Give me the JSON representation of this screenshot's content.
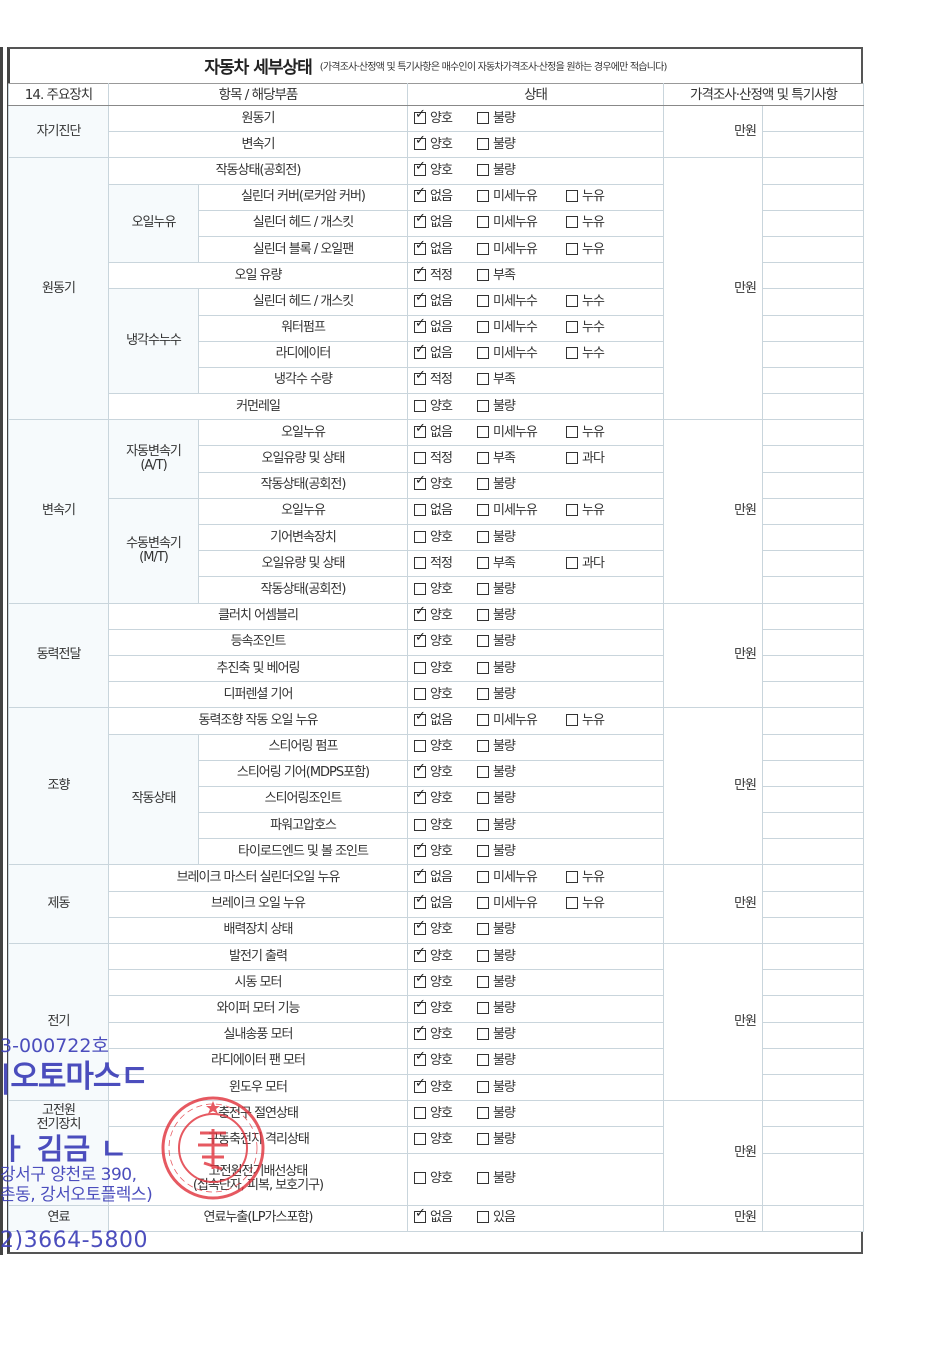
{
  "header": {
    "title": "자동차 세부상태",
    "subtitle": "(가격조사·산정액 및 특기사항은 매수인이 자동차가격조사·산정을 원하는 경우에만 적습니다)"
  },
  "columns": {
    "section": "14. 주요장치",
    "item": "항목 / 해당부품",
    "status": "상태",
    "price": "가격조사·산정액 및 특기사항"
  },
  "sections": [
    {
      "label": "자기진단",
      "price_unit": "만원",
      "rows": [
        {
          "item": "원동기",
          "options": [
            {
              "label": "양호",
              "checked": true
            },
            {
              "label": "불량",
              "checked": false
            }
          ]
        },
        {
          "item": "변속기",
          "options": [
            {
              "label": "양호",
              "checked": true
            },
            {
              "label": "불량",
              "checked": false
            }
          ]
        }
      ]
    },
    {
      "label": "원동기",
      "price_unit": "만원",
      "rows": [
        {
          "item": "작동상태(공회전)",
          "options": [
            {
              "label": "양호",
              "checked": true
            },
            {
              "label": "불량",
              "checked": false
            }
          ]
        },
        {
          "group": "오일누유",
          "item": "실린더 커버(로커암 커버)",
          "options": [
            {
              "label": "없음",
              "checked": true
            },
            {
              "label": "미세누유",
              "checked": false
            },
            {
              "label": "누유",
              "checked": false
            }
          ]
        },
        {
          "group": "오일누유",
          "item": "실린더 헤드 / 개스킷",
          "options": [
            {
              "label": "없음",
              "checked": true
            },
            {
              "label": "미세누유",
              "checked": false
            },
            {
              "label": "누유",
              "checked": false
            }
          ]
        },
        {
          "group": "오일누유",
          "item": "실린더 블록 / 오일팬",
          "options": [
            {
              "label": "없음",
              "checked": true
            },
            {
              "label": "미세누유",
              "checked": false
            },
            {
              "label": "누유",
              "checked": false
            }
          ]
        },
        {
          "item": "오일 유량",
          "options": [
            {
              "label": "적정",
              "checked": true
            },
            {
              "label": "부족",
              "checked": false
            }
          ]
        },
        {
          "group": "냉각수누수",
          "item": "실린더 헤드 / 개스킷",
          "options": [
            {
              "label": "없음",
              "checked": true
            },
            {
              "label": "미세누수",
              "checked": false
            },
            {
              "label": "누수",
              "checked": false
            }
          ]
        },
        {
          "group": "냉각수누수",
          "item": "워터펌프",
          "options": [
            {
              "label": "없음",
              "checked": true
            },
            {
              "label": "미세누수",
              "checked": false
            },
            {
              "label": "누수",
              "checked": false
            }
          ]
        },
        {
          "group": "냉각수누수",
          "item": "라디에이터",
          "options": [
            {
              "label": "없음",
              "checked": true
            },
            {
              "label": "미세누수",
              "checked": false
            },
            {
              "label": "누수",
              "checked": false
            }
          ]
        },
        {
          "group": "냉각수누수",
          "item": "냉각수 수량",
          "options": [
            {
              "label": "적정",
              "checked": true
            },
            {
              "label": "부족",
              "checked": false
            }
          ]
        },
        {
          "item": "커먼레일",
          "options": [
            {
              "label": "양호",
              "checked": false
            },
            {
              "label": "불량",
              "checked": false
            }
          ]
        }
      ]
    },
    {
      "label": "변속기",
      "price_unit": "만원",
      "rows": [
        {
          "group": "자동변속기\n(A/T)",
          "item": "오일누유",
          "options": [
            {
              "label": "없음",
              "checked": true
            },
            {
              "label": "미세누유",
              "checked": false
            },
            {
              "label": "누유",
              "checked": false
            }
          ]
        },
        {
          "group": "자동변속기\n(A/T)",
          "item": "오일유량 및 상태",
          "options": [
            {
              "label": "적정",
              "checked": false
            },
            {
              "label": "부족",
              "checked": false
            },
            {
              "label": "과다",
              "checked": false
            }
          ]
        },
        {
          "group": "자동변속기\n(A/T)",
          "item": "작동상태(공회전)",
          "options": [
            {
              "label": "양호",
              "checked": true
            },
            {
              "label": "불량",
              "checked": false
            }
          ]
        },
        {
          "group": "수동변속기\n(M/T)",
          "item": "오일누유",
          "options": [
            {
              "label": "없음",
              "checked": false
            },
            {
              "label": "미세누유",
              "checked": false
            },
            {
              "label": "누유",
              "checked": false
            }
          ]
        },
        {
          "group": "수동변속기\n(M/T)",
          "item": "기어변속장치",
          "options": [
            {
              "label": "양호",
              "checked": false
            },
            {
              "label": "불량",
              "checked": false
            }
          ]
        },
        {
          "group": "수동변속기\n(M/T)",
          "item": "오일유량 및 상태",
          "options": [
            {
              "label": "적정",
              "checked": false
            },
            {
              "label": "부족",
              "checked": false
            },
            {
              "label": "과다",
              "checked": false
            }
          ]
        },
        {
          "group": "수동변속기\n(M/T)",
          "item": "작동상태(공회전)",
          "options": [
            {
              "label": "양호",
              "checked": false
            },
            {
              "label": "불량",
              "checked": false
            }
          ]
        }
      ]
    },
    {
      "label": "동력전달",
      "price_unit": "만원",
      "rows": [
        {
          "item": "클러치 어셈블리",
          "options": [
            {
              "label": "양호",
              "checked": true
            },
            {
              "label": "불량",
              "checked": false
            }
          ]
        },
        {
          "item": "등속조인트",
          "options": [
            {
              "label": "양호",
              "checked": true
            },
            {
              "label": "불량",
              "checked": false
            }
          ]
        },
        {
          "item": "추진축 및 베어링",
          "options": [
            {
              "label": "양호",
              "checked": false
            },
            {
              "label": "불량",
              "checked": false
            }
          ]
        },
        {
          "item": "디퍼렌셜 기어",
          "options": [
            {
              "label": "양호",
              "checked": false
            },
            {
              "label": "불량",
              "checked": false
            }
          ]
        }
      ]
    },
    {
      "label": "조향",
      "price_unit": "만원",
      "rows": [
        {
          "item": "동력조향 작동 오일 누유",
          "options": [
            {
              "label": "없음",
              "checked": true
            },
            {
              "label": "미세누유",
              "checked": false
            },
            {
              "label": "누유",
              "checked": false
            }
          ]
        },
        {
          "group": "작동상태",
          "item": "스티어링 펌프",
          "options": [
            {
              "label": "양호",
              "checked": false
            },
            {
              "label": "불량",
              "checked": false
            }
          ]
        },
        {
          "group": "작동상태",
          "item": "스티어링 기어(MDPS포함)",
          "options": [
            {
              "label": "양호",
              "checked": true
            },
            {
              "label": "불량",
              "checked": false
            }
          ]
        },
        {
          "group": "작동상태",
          "item": "스티어링조인트",
          "options": [
            {
              "label": "양호",
              "checked": true
            },
            {
              "label": "불량",
              "checked": false
            }
          ]
        },
        {
          "group": "작동상태",
          "item": "파워고압호스",
          "options": [
            {
              "label": "양호",
              "checked": false
            },
            {
              "label": "불량",
              "checked": false
            }
          ]
        },
        {
          "group": "작동상태",
          "item": "타이로드엔드 및 볼 조인트",
          "options": [
            {
              "label": "양호",
              "checked": true
            },
            {
              "label": "불량",
              "checked": false
            }
          ]
        }
      ]
    },
    {
      "label": "제동",
      "price_unit": "만원",
      "rows": [
        {
          "item": "브레이크 마스터 실린더오일 누유",
          "options": [
            {
              "label": "없음",
              "checked": true
            },
            {
              "label": "미세누유",
              "checked": false
            },
            {
              "label": "누유",
              "checked": false
            }
          ]
        },
        {
          "item": "브레이크 오일 누유",
          "options": [
            {
              "label": "없음",
              "checked": true
            },
            {
              "label": "미세누유",
              "checked": false
            },
            {
              "label": "누유",
              "checked": false
            }
          ]
        },
        {
          "item": "배력장치 상태",
          "options": [
            {
              "label": "양호",
              "checked": true
            },
            {
              "label": "불량",
              "checked": false
            }
          ]
        }
      ]
    },
    {
      "label": "전기",
      "price_unit": "만원",
      "rows": [
        {
          "item": "발전기 출력",
          "options": [
            {
              "label": "양호",
              "checked": true
            },
            {
              "label": "불량",
              "checked": false
            }
          ]
        },
        {
          "item": "시동 모터",
          "options": [
            {
              "label": "양호",
              "checked": true
            },
            {
              "label": "불량",
              "checked": false
            }
          ]
        },
        {
          "item": "와이퍼 모터 기능",
          "options": [
            {
              "label": "양호",
              "checked": true
            },
            {
              "label": "불량",
              "checked": false
            }
          ]
        },
        {
          "item": "실내송풍 모터",
          "options": [
            {
              "label": "양호",
              "checked": true
            },
            {
              "label": "불량",
              "checked": false
            }
          ]
        },
        {
          "item": "라디에이터 팬 모터",
          "options": [
            {
              "label": "양호",
              "checked": true
            },
            {
              "label": "불량",
              "checked": false
            }
          ]
        },
        {
          "item": "윈도우 모터",
          "options": [
            {
              "label": "양호",
              "checked": true
            },
            {
              "label": "불량",
              "checked": false
            }
          ]
        }
      ]
    },
    {
      "label": "고전원\n전기장치",
      "price_unit": "만원",
      "rows": [
        {
          "item": "충전구 절연상태",
          "options": [
            {
              "label": "양호",
              "checked": false
            },
            {
              "label": "불량",
              "checked": false
            }
          ]
        },
        {
          "item": "구동축전지 격리상태",
          "options": [
            {
              "label": "양호",
              "checked": false
            },
            {
              "label": "불량",
              "checked": false
            }
          ]
        },
        {
          "item": "고전원전기배선상태\n(접속단자, 피복, 보호기구)",
          "options": [
            {
              "label": "양호",
              "checked": false
            },
            {
              "label": "불량",
              "checked": false
            }
          ]
        }
      ]
    },
    {
      "label": "연료",
      "price_unit": "만원",
      "rows": [
        {
          "item": "연료누출(LP가스포함)",
          "options": [
            {
              "label": "없음",
              "checked": true
            },
            {
              "label": "있음",
              "checked": false
            }
          ]
        }
      ]
    }
  ],
  "stamp": {
    "lines": [
      "3-000722호",
      "|오토마스ㄷ",
      "ㅏ 김금 ㄴ",
      "강서구 양천로 390,",
      "촌동, 강서오토플렉스)",
      "2)3664-5800"
    ],
    "ink_color": "#3d3fb8",
    "seal_color": "#e0303a"
  }
}
